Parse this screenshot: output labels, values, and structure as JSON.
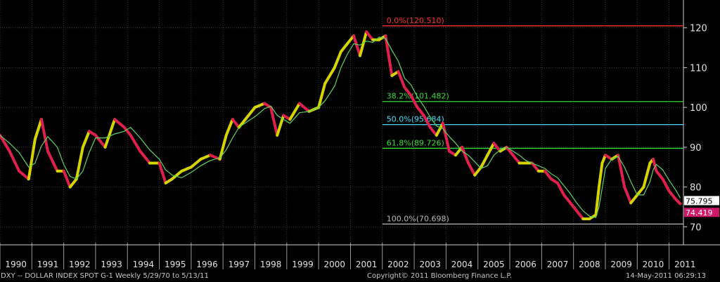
{
  "footer": {
    "left": "DXY -- DOLLAR INDEX SPOT    G-1   Weekly  5/29/70 to 5/13/11",
    "center": "Copyright© 2011 Bloomberg Finance L.P.",
    "right": "14-May-2011 06:29:13"
  },
  "chart_data": {
    "type": "line",
    "title": "",
    "xlabel": "",
    "ylabel": "",
    "ylim": [
      66,
      127
    ],
    "xlim": [
      1990.0,
      2011.45
    ],
    "y_ticks": [
      "70",
      "80",
      "90",
      "100",
      "110",
      "120"
    ],
    "x_ticks": [
      "1990",
      "1991",
      "1992",
      "1993",
      "1994",
      "1995",
      "1996",
      "1997",
      "1998",
      "1999",
      "2000",
      "2001",
      "2002",
      "2003",
      "2004",
      "2005",
      "2006",
      "2007",
      "2008",
      "2009",
      "2010",
      "2011"
    ],
    "grid": true,
    "last_price_label": "75.795",
    "last_price": 75.795,
    "second_price_label": "74.419",
    "second_price": 74.419,
    "colors": {
      "background": "#000000",
      "grid": "#3a3a3a",
      "axis_text": "#e0e0e0",
      "price_up": "#d4d400",
      "price_down": "#e0204c",
      "moving_average": "#5fd35f"
    },
    "fib_levels": [
      {
        "label": "0.0%(120.510)",
        "value": 120.51,
        "color": "#ff3030"
      },
      {
        "label": "38.2%(101.482)",
        "value": 101.482,
        "color": "#33dd33"
      },
      {
        "label": "50.0%(95.684)",
        "value": 95.684,
        "color": "#40e0ff"
      },
      {
        "label": "61.8%(89.726)",
        "value": 89.726,
        "color": "#33dd33"
      },
      {
        "label": "100.0%(70.698)",
        "value": 70.698,
        "color": "#b8b8b8"
      }
    ],
    "series": [
      {
        "x": [
          1990.0,
          1990.3,
          1990.6,
          1990.9,
          1991.1,
          1991.3,
          1991.5,
          1991.8,
          1992.0,
          1992.2,
          1992.4,
          1992.6,
          1992.8,
          1993.0,
          1993.3,
          1993.6,
          1993.9,
          1994.1,
          1994.4,
          1994.7,
          1995.0,
          1995.2,
          1995.4,
          1995.7,
          1996.0,
          1996.3,
          1996.6,
          1996.9,
          1997.1,
          1997.3,
          1997.5,
          1997.8,
          1998.0,
          1998.3,
          1998.5,
          1998.7,
          1998.9,
          1999.1,
          1999.4,
          1999.7,
          2000.0,
          2000.2,
          2000.5,
          2000.7,
          2000.9,
          2001.1,
          2001.3,
          2001.5,
          2001.7,
          2001.9,
          2002.1,
          2002.3,
          2002.5,
          2002.7,
          2002.9,
          2003.1,
          2003.3,
          2003.5,
          2003.7,
          2003.9,
          2004.1,
          2004.3,
          2004.5,
          2004.7,
          2004.9,
          2005.1,
          2005.3,
          2005.5,
          2005.7,
          2005.9,
          2006.1,
          2006.3,
          2006.5,
          2006.7,
          2006.9,
          2007.1,
          2007.3,
          2007.5,
          2007.7,
          2007.9,
          2008.1,
          2008.3,
          2008.5,
          2008.7,
          2008.8,
          2008.9,
          2009.0,
          2009.2,
          2009.4,
          2009.6,
          2009.8,
          2010.0,
          2010.2,
          2010.4,
          2010.5,
          2010.6,
          2010.8,
          2011.0,
          2011.2,
          2011.35
        ],
        "values": [
          93,
          89,
          84,
          82,
          92,
          97,
          89,
          84,
          84,
          80,
          82,
          90,
          94,
          93,
          90,
          97,
          95,
          93,
          89,
          86,
          86,
          81,
          82,
          84,
          85,
          87,
          88,
          87,
          93,
          97,
          95,
          98,
          100,
          101,
          100,
          93,
          98,
          97,
          101,
          99,
          100,
          106,
          110,
          114,
          116,
          118,
          113,
          119,
          117,
          117,
          118,
          108,
          109,
          105,
          103,
          100,
          98,
          95,
          93,
          96,
          89,
          88,
          90,
          86,
          83,
          85,
          88,
          91,
          89,
          90,
          88,
          86,
          86,
          86,
          84,
          84,
          82,
          81,
          78,
          76,
          74,
          72,
          72,
          73,
          80,
          86,
          88,
          87,
          88,
          80,
          76,
          78,
          80,
          86,
          87,
          84,
          82,
          79,
          77,
          75.8
        ]
      }
    ]
  }
}
